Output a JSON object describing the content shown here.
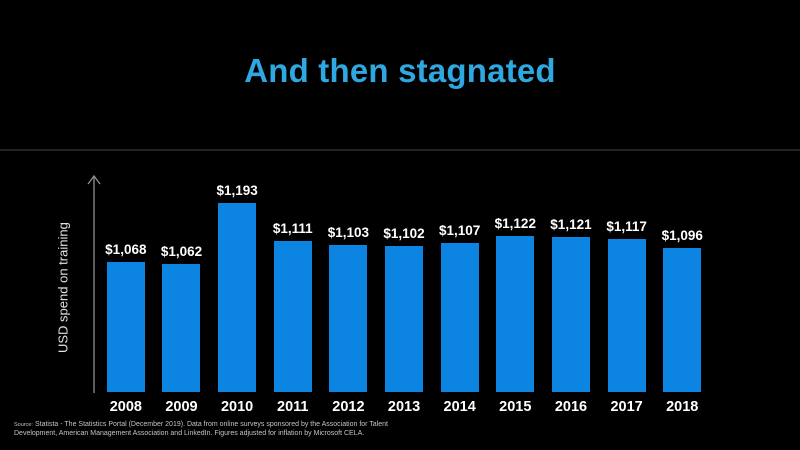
{
  "slide": {
    "title": "And then stagnated"
  },
  "colors": {
    "background": "#000000",
    "title": "#2fa8e1",
    "bar": "#0b84e2",
    "axis": "#8f8f8f",
    "label_text": "#ffffff",
    "source_text": "#c4c4c4"
  },
  "chart_data": {
    "type": "bar",
    "title": "And then stagnated",
    "categories": [
      "2008",
      "2009",
      "2010",
      "2011",
      "2012",
      "2013",
      "2014",
      "2015",
      "2016",
      "2017",
      "2018"
    ],
    "values": [
      1068,
      1062,
      1193,
      1111,
      1103,
      1102,
      1107,
      1122,
      1121,
      1117,
      1096
    ],
    "value_labels": [
      "$1,068",
      "$1,062",
      "$1,193",
      "$1,111",
      "$1,103",
      "$1,102",
      "$1,107",
      "$1,122",
      "$1,121",
      "$1,117",
      "$1,096"
    ],
    "xlabel": "",
    "ylabel": "USD spend on training",
    "ylim": [
      790,
      1250
    ],
    "grid": false,
    "legend": "none",
    "y_axis_style": "arrow-no-ticks",
    "bar_color": "#0b84e2"
  },
  "source": {
    "prefix": "Source:",
    "line1": "Statista - The Statistics Portal (December 2019). Data from online surveys sponsored by the Association for Talent",
    "line2": "Development, American Management Association and  LinkedIn. Figures adjusted for inflation by Microsoft CELA."
  }
}
